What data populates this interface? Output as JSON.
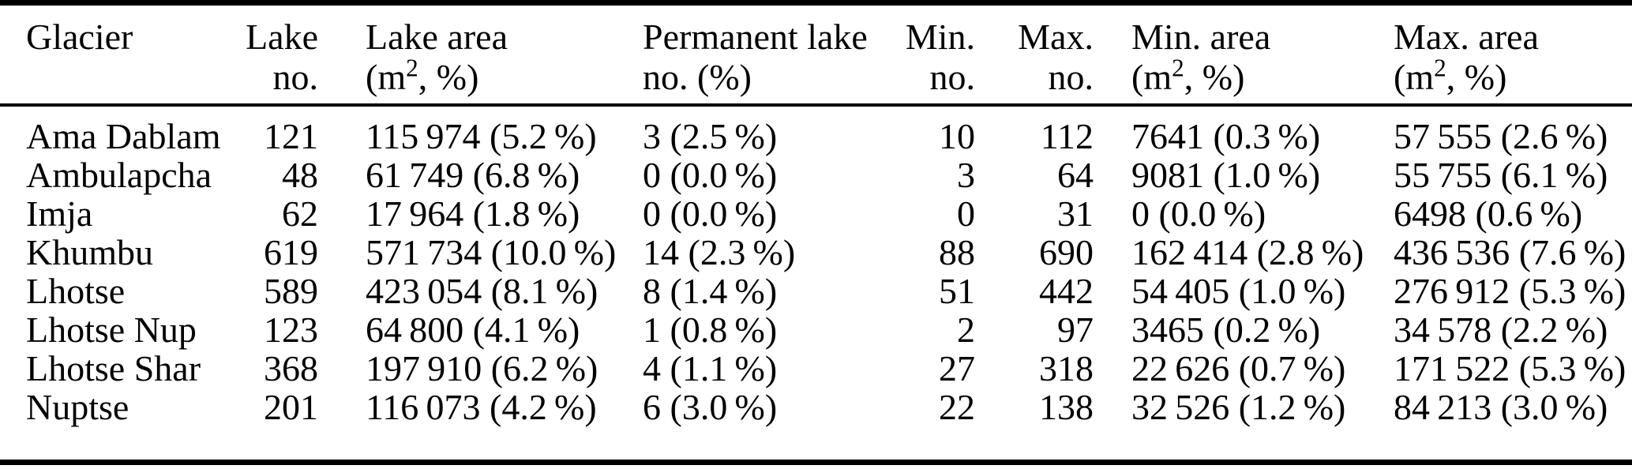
{
  "table": {
    "columns": [
      {
        "id": "glacier",
        "align": "left",
        "line1": "Glacier",
        "line2": ""
      },
      {
        "id": "lake-no",
        "align": "right",
        "line1": "Lake",
        "line2": "no."
      },
      {
        "id": "lake-area",
        "align": "left",
        "line1": "Lake area",
        "unit_pre": "(m",
        "unit_sup": "2",
        "unit_post": ", %)"
      },
      {
        "id": "permanent-lake",
        "align": "left",
        "line1": "Permanent lake",
        "line2": "no. (%)"
      },
      {
        "id": "min-no",
        "align": "right",
        "line1": "Min.",
        "line2": "no."
      },
      {
        "id": "max-no",
        "align": "right",
        "line1": "Max.",
        "line2": "no."
      },
      {
        "id": "min-area",
        "align": "left",
        "line1": "Min. area",
        "unit_pre": "(m",
        "unit_sup": "2",
        "unit_post": ", %)"
      },
      {
        "id": "max-area",
        "align": "left",
        "line1": "Max. area",
        "unit_pre": "(m",
        "unit_sup": "2",
        "unit_post": ", %)"
      }
    ],
    "rows": [
      [
        "Ama Dablam",
        "121",
        "115 974 (5.2 %)",
        "3 (2.5 %)",
        "10",
        "112",
        "7641 (0.3 %)",
        "57 555 (2.6 %)"
      ],
      [
        "Ambulapcha",
        "48",
        "61 749 (6.8 %)",
        "0 (0.0 %)",
        "3",
        "64",
        "9081 (1.0 %)",
        "55 755 (6.1 %)"
      ],
      [
        "Imja",
        "62",
        "17 964 (1.8 %)",
        "0 (0.0 %)",
        "0",
        "31",
        "0 (0.0 %)",
        "6498 (0.6 %)"
      ],
      [
        "Khumbu",
        "619",
        "571 734 (10.0 %)",
        "14 (2.3 %)",
        "88",
        "690",
        "162 414 (2.8 %)",
        "436 536 (7.6 %)"
      ],
      [
        "Lhotse",
        "589",
        "423 054 (8.1 %)",
        "8 (1.4 %)",
        "51",
        "442",
        "54 405 (1.0 %)",
        "276 912 (5.3 %)"
      ],
      [
        "Lhotse Nup",
        "123",
        "64 800 (4.1 %)",
        "1 (0.8 %)",
        "2",
        "97",
        "3465 (0.2 %)",
        "34 578 (2.2 %)"
      ],
      [
        "Lhotse Shar",
        "368",
        "197 910 (6.2 %)",
        "4 (1.1 %)",
        "27",
        "318",
        "22 626 (0.7 %)",
        "171 522 (5.3 %)"
      ],
      [
        "Nuptse",
        "201",
        "116 073 (4.2 %)",
        "6 (3.0 %)",
        "22",
        "138",
        "32 526 (1.2 %)",
        "84 213 (3.0 %)"
      ]
    ]
  },
  "colors": {
    "text": "#000000",
    "rule": "#000000",
    "background": "#ffffff"
  },
  "chart_data": {
    "type": "table",
    "columns": [
      "Glacier",
      "Lake no.",
      "Lake area (m², %)",
      "Permanent lake no. (%)",
      "Min. no.",
      "Max. no.",
      "Min. area (m², %)",
      "Max. area (m², %)"
    ],
    "rows": [
      [
        "Ama Dablam",
        121,
        "115974 (5.2%)",
        "3 (2.5%)",
        10,
        112,
        "7641 (0.3%)",
        "57555 (2.6%)"
      ],
      [
        "Ambulapcha",
        48,
        "61749 (6.8%)",
        "0 (0.0%)",
        3,
        64,
        "9081 (1.0%)",
        "55755 (6.1%)"
      ],
      [
        "Imja",
        62,
        "17964 (1.8%)",
        "0 (0.0%)",
        0,
        31,
        "0 (0.0%)",
        "6498 (0.6%)"
      ],
      [
        "Khumbu",
        619,
        "571734 (10.0%)",
        "14 (2.3%)",
        88,
        690,
        "162414 (2.8%)",
        "436536 (7.6%)"
      ],
      [
        "Lhotse",
        589,
        "423054 (8.1%)",
        "8 (1.4%)",
        51,
        442,
        "54405 (1.0%)",
        "276912 (5.3%)"
      ],
      [
        "Lhotse Nup",
        123,
        "64800 (4.1%)",
        "1 (0.8%)",
        2,
        97,
        "3465 (0.2%)",
        "34578 (2.2%)"
      ],
      [
        "Lhotse Shar",
        368,
        "197910 (6.2%)",
        "4 (1.1%)",
        27,
        318,
        "22626 (0.7%)",
        "171522 (5.3%)"
      ],
      [
        "Nuptse",
        201,
        "116073 (4.2%)",
        "6 (3.0%)",
        22,
        138,
        "32526 (1.2%)",
        "84213 (3.0%)"
      ]
    ]
  }
}
